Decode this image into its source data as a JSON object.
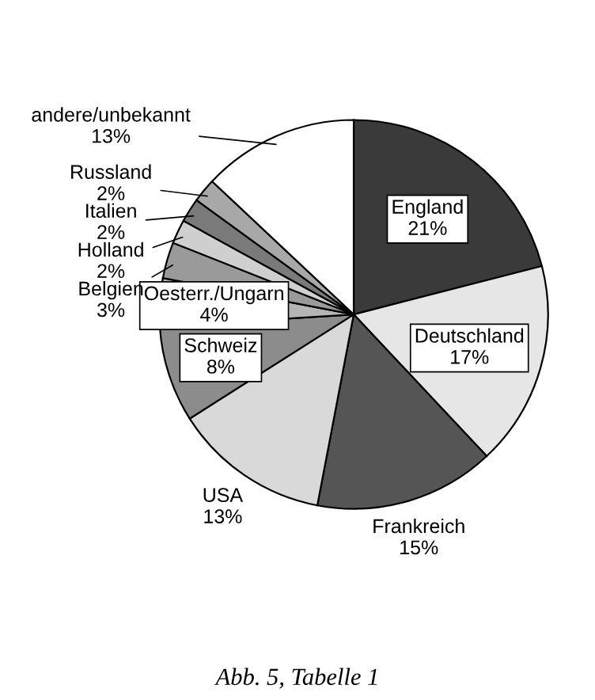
{
  "chart_data": {
    "type": "pie",
    "categories": [
      "England",
      "Deutschland",
      "Frankreich",
      "USA",
      "Schweiz",
      "Oesterr./Ungarn",
      "Belgien",
      "Holland",
      "Italien",
      "Russland",
      "andere/unbekannt"
    ],
    "values": [
      21,
      17,
      15,
      13,
      8,
      4,
      3,
      2,
      2,
      2,
      13
    ],
    "colors": [
      "#3a3a3a",
      "#e6e6e6",
      "#555555",
      "#d9d9d9",
      "#8c8c8c",
      "#b5b5b5",
      "#9a9a9a",
      "#cfcfcf",
      "#7a7a7a",
      "#a8a8a8",
      "#ffffff"
    ],
    "value_labels": [
      "21%",
      "17%",
      "15%",
      "13%",
      "8%",
      "4%",
      "3%",
      "2%",
      "2%",
      "2%",
      "13%"
    ],
    "annotations": [
      "Abb. 5, Tabelle 1"
    ]
  }
}
